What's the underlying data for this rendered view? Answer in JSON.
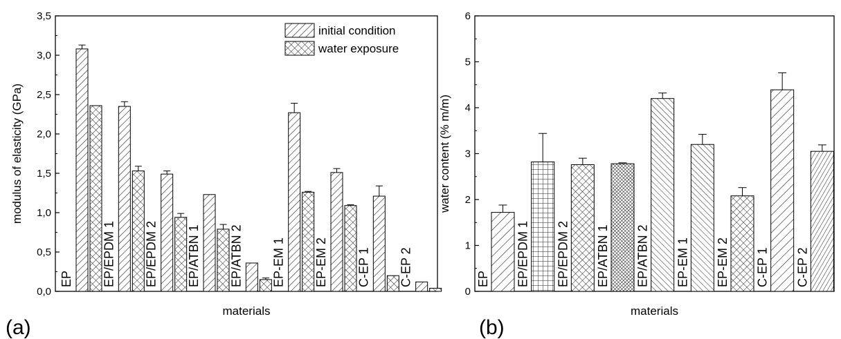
{
  "panels": {
    "a": {
      "label": "(a)"
    },
    "b": {
      "label": "(b)"
    }
  },
  "chart_data": [
    {
      "type": "bar",
      "xlabel": "materials",
      "ylabel": "modulus of elasticity (GPa)",
      "ylim": [
        0,
        3.5
      ],
      "yticks": [
        "0,0",
        "0,5",
        "1,0",
        "1,5",
        "2,0",
        "2,5",
        "3,0",
        "3,5"
      ],
      "categories": [
        "EP",
        "EP/EPDM 1",
        "EP/EPDM 2",
        "EP/ATBN 1",
        "EP/ATBN 2",
        "EP-EM 1",
        "EP-EM 2",
        "C-EP 1",
        "C-EP 2"
      ],
      "legend": {
        "position": "top-right"
      },
      "series": [
        {
          "name": "initial condition",
          "pattern": "diagonal-hatch",
          "values": [
            3.08,
            2.35,
            1.49,
            1.23,
            0.36,
            2.27,
            1.51,
            1.21,
            0.12
          ],
          "errors": [
            0.05,
            0.06,
            0.04,
            0.0,
            0.0,
            0.12,
            0.05,
            0.13,
            0.0
          ]
        },
        {
          "name": "water exposure",
          "pattern": "cross-hatch",
          "values": [
            2.36,
            1.53,
            0.94,
            0.79,
            0.15,
            1.26,
            1.09,
            0.2,
            0.04
          ],
          "errors": [
            0.0,
            0.06,
            0.05,
            0.06,
            0.02,
            0.01,
            0.01,
            0.0,
            0.0
          ]
        }
      ],
      "grid": false
    },
    {
      "type": "bar",
      "xlabel": "materials",
      "ylabel": "water content (% m/m)",
      "ylim": [
        0,
        6
      ],
      "yticks": [
        "0",
        "1",
        "2",
        "3",
        "4",
        "5",
        "6"
      ],
      "categories": [
        "EP",
        "EP/EPDM 1",
        "EP/EPDM 2",
        "EP/ATBN 1",
        "EP/ATBN 2",
        "EP-EM 1",
        "EP-EM 2",
        "C-EP 1",
        "C-EP 2"
      ],
      "values": [
        1.72,
        2.82,
        2.76,
        2.78,
        4.2,
        3.2,
        2.08,
        4.39,
        3.05
      ],
      "errors": [
        0.16,
        0.62,
        0.14,
        0.02,
        0.12,
        0.22,
        0.18,
        0.37,
        0.14
      ],
      "patterns": [
        "diag-wide",
        "grid",
        "crosshatch",
        "fine-crosshatch",
        "back-diag",
        "back-diag",
        "crosshatch",
        "diag-wide",
        "vertical-diag"
      ],
      "grid": false
    }
  ]
}
